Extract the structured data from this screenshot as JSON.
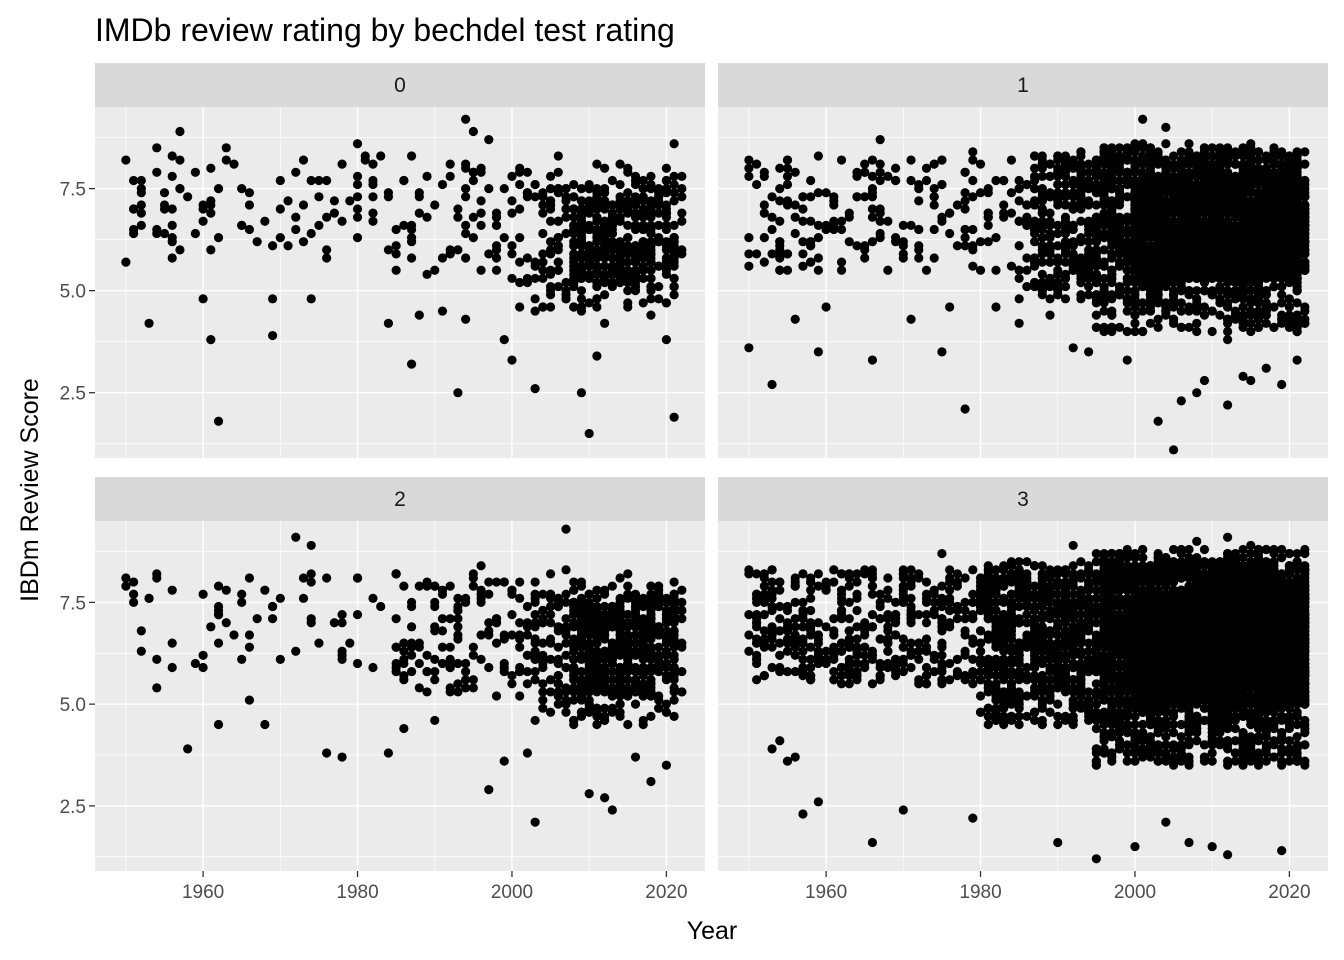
{
  "chart_data": {
    "type": "scatter",
    "title": "IMDb review rating by bechdel test rating",
    "xlabel": "Year",
    "ylabel": "IBDm Review Score",
    "xlim": [
      1946,
      2025
    ],
    "ylim": [
      0.9,
      9.5
    ],
    "x_ticks": [
      1960,
      1980,
      2000,
      2020
    ],
    "y_ticks": [
      2.5,
      5.0,
      7.5
    ],
    "x_tick_labels": [
      "1960",
      "1980",
      "2000",
      "2020"
    ],
    "y_tick_labels": [
      "2.5",
      "5.0",
      "7.5"
    ],
    "grid": true,
    "facet_by": "bechdel test rating",
    "panels": [
      {
        "label": "0",
        "density": 400,
        "points": [
          [
            1950,
            8.2
          ],
          [
            1950,
            5.7
          ],
          [
            1951,
            7.7
          ],
          [
            1952,
            6.9
          ],
          [
            1953,
            4.2
          ],
          [
            1954,
            8.5
          ],
          [
            1955,
            6.4
          ],
          [
            1957,
            8.9
          ],
          [
            1957,
            7.5
          ],
          [
            1958,
            7.3
          ],
          [
            1960,
            4.8
          ],
          [
            1961,
            3.8
          ],
          [
            1962,
            1.8
          ],
          [
            1963,
            8.5
          ],
          [
            1966,
            7.4
          ],
          [
            1969,
            3.9
          ],
          [
            1969,
            4.8
          ],
          [
            1972,
            6.8
          ],
          [
            1974,
            4.8
          ],
          [
            1977,
            6.9
          ],
          [
            1980,
            8.6
          ],
          [
            1981,
            8.3
          ],
          [
            1984,
            4.2
          ],
          [
            1987,
            3.2
          ],
          [
            1988,
            4.4
          ],
          [
            1990,
            5.5
          ],
          [
            1991,
            4.5
          ],
          [
            1993,
            2.5
          ],
          [
            1994,
            4.3
          ],
          [
            1994,
            9.2
          ],
          [
            1995,
            8.9
          ],
          [
            1997,
            8.7
          ],
          [
            1999,
            3.8
          ],
          [
            2000,
            3.3
          ],
          [
            2001,
            4.6
          ],
          [
            2003,
            2.6
          ],
          [
            2006,
            8.3
          ],
          [
            2009,
            2.5
          ],
          [
            2010,
            1.5
          ],
          [
            2011,
            3.4
          ],
          [
            2012,
            4.2
          ],
          [
            2018,
            4.4
          ],
          [
            2020,
            3.8
          ],
          [
            2021,
            1.9
          ],
          [
            2021,
            8.6
          ],
          [
            2022,
            7.8
          ]
        ],
        "clusters": [
          {
            "x": [
              1950,
              2022
            ],
            "y": [
              5.8,
              8.3
            ],
            "n": 150
          },
          {
            "x": [
              1985,
              2022
            ],
            "y": [
              5.2,
              8.0
            ],
            "n": 150
          },
          {
            "x": [
              2003,
              2022
            ],
            "y": [
              4.5,
              7.6
            ],
            "n": 220
          },
          {
            "x": [
              2008,
              2018
            ],
            "y": [
              5.3,
              7.2
            ],
            "n": 160
          }
        ]
      },
      {
        "label": "1",
        "density": 1000,
        "points": [
          [
            1950,
            3.6
          ],
          [
            1950,
            7.8
          ],
          [
            1953,
            2.7
          ],
          [
            1955,
            7.1
          ],
          [
            1956,
            4.3
          ],
          [
            1959,
            3.5
          ],
          [
            1960,
            4.6
          ],
          [
            1962,
            5.7
          ],
          [
            1966,
            3.3
          ],
          [
            1967,
            8.7
          ],
          [
            1971,
            4.3
          ],
          [
            1975,
            3.5
          ],
          [
            1976,
            4.6
          ],
          [
            1978,
            2.1
          ],
          [
            1979,
            8.4
          ],
          [
            1982,
            4.6
          ],
          [
            1985,
            4.2
          ],
          [
            1989,
            4.4
          ],
          [
            1992,
            3.6
          ],
          [
            1994,
            3.5
          ],
          [
            1996,
            8.2
          ],
          [
            1999,
            3.3
          ],
          [
            2001,
            9.2
          ],
          [
            2003,
            1.8
          ],
          [
            2004,
            9.0
          ],
          [
            2005,
            1.1
          ],
          [
            2006,
            2.3
          ],
          [
            2008,
            2.5
          ],
          [
            2009,
            2.8
          ],
          [
            2012,
            3.8
          ],
          [
            2012,
            2.2
          ],
          [
            2014,
            2.9
          ],
          [
            2015,
            2.8
          ],
          [
            2017,
            3.1
          ],
          [
            2019,
            2.7
          ],
          [
            2021,
            3.3
          ],
          [
            2022,
            6.6
          ]
        ],
        "clusters": [
          {
            "x": [
              1950,
              2022
            ],
            "y": [
              5.5,
              8.3
            ],
            "n": 400
          },
          {
            "x": [
              1985,
              2022
            ],
            "y": [
              4.8,
              8.4
            ],
            "n": 800
          },
          {
            "x": [
              1995,
              2022
            ],
            "y": [
              4.0,
              8.6
            ],
            "n": 800
          },
          {
            "x": [
              2000,
              2022
            ],
            "y": [
              5.3,
              7.8
            ],
            "n": 1500
          }
        ]
      },
      {
        "label": "2",
        "density": 400,
        "points": [
          [
            1950,
            7.9
          ],
          [
            1954,
            5.4
          ],
          [
            1958,
            3.9
          ],
          [
            1962,
            4.5
          ],
          [
            1966,
            5.1
          ],
          [
            1968,
            4.5
          ],
          [
            1972,
            9.1
          ],
          [
            1974,
            8.9
          ],
          [
            1976,
            3.8
          ],
          [
            1978,
            3.7
          ],
          [
            1984,
            3.8
          ],
          [
            1986,
            4.4
          ],
          [
            1987,
            6.4
          ],
          [
            1990,
            4.6
          ],
          [
            1993,
            6.6
          ],
          [
            1996,
            8.4
          ],
          [
            1997,
            2.9
          ],
          [
            1999,
            3.6
          ],
          [
            2002,
            3.8
          ],
          [
            2003,
            2.1
          ],
          [
            2007,
            9.3
          ],
          [
            2010,
            2.8
          ],
          [
            2012,
            2.7
          ],
          [
            2013,
            2.4
          ],
          [
            2016,
            3.7
          ],
          [
            2018,
            3.1
          ],
          [
            2020,
            3.5
          ],
          [
            2022,
            5.8
          ]
        ],
        "clusters": [
          {
            "x": [
              1950,
              2022
            ],
            "y": [
              5.8,
              8.3
            ],
            "n": 150
          },
          {
            "x": [
              1985,
              2022
            ],
            "y": [
              5.2,
              8.0
            ],
            "n": 200
          },
          {
            "x": [
              2003,
              2022
            ],
            "y": [
              4.5,
              7.8
            ],
            "n": 300
          },
          {
            "x": [
              2008,
              2018
            ],
            "y": [
              5.2,
              7.3
            ],
            "n": 180
          }
        ]
      },
      {
        "label": "3",
        "density": 1400,
        "points": [
          [
            1950,
            8.3
          ],
          [
            1953,
            3.9
          ],
          [
            1954,
            4.1
          ],
          [
            1955,
            3.6
          ],
          [
            1956,
            3.7
          ],
          [
            1957,
            2.3
          ],
          [
            1959,
            2.6
          ],
          [
            1960,
            7.9
          ],
          [
            1966,
            1.6
          ],
          [
            1970,
            2.4
          ],
          [
            1975,
            8.7
          ],
          [
            1979,
            2.2
          ],
          [
            1990,
            1.6
          ],
          [
            1992,
            8.9
          ],
          [
            1995,
            1.2
          ],
          [
            1996,
            8.7
          ],
          [
            2000,
            1.5
          ],
          [
            2004,
            2.1
          ],
          [
            2007,
            1.6
          ],
          [
            2008,
            9.0
          ],
          [
            2010,
            1.5
          ],
          [
            2012,
            1.3
          ],
          [
            2012,
            9.1
          ],
          [
            2015,
            8.9
          ],
          [
            2019,
            1.4
          ],
          [
            2022,
            8.8
          ],
          [
            2022,
            3.5
          ]
        ],
        "clusters": [
          {
            "x": [
              1950,
              2022
            ],
            "y": [
              5.5,
              8.3
            ],
            "n": 1000
          },
          {
            "x": [
              1980,
              2022
            ],
            "y": [
              4.5,
              8.5
            ],
            "n": 1500
          },
          {
            "x": [
              1995,
              2022
            ],
            "y": [
              3.5,
              8.8
            ],
            "n": 1200
          },
          {
            "x": [
              2000,
              2022
            ],
            "y": [
              5.0,
              7.8
            ],
            "n": 2500
          }
        ]
      }
    ]
  }
}
